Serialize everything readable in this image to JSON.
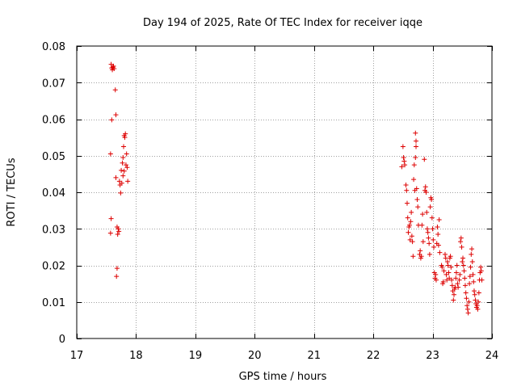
{
  "chart_data": {
    "type": "scatter",
    "title": "Day 194 of 2025, Rate Of TEC Index for receiver iqqe",
    "xlabel": "GPS time / hours",
    "ylabel": "ROTI / TECUs",
    "xlim": [
      17,
      24
    ],
    "ylim": [
      0,
      0.08
    ],
    "xticks": [
      17,
      18,
      19,
      20,
      21,
      22,
      23,
      24
    ],
    "yticks": [
      0,
      0.01,
      0.02,
      0.03,
      0.04,
      0.05,
      0.06,
      0.07,
      0.08
    ],
    "ytick_labels": [
      "0",
      "0.01",
      "0.02",
      "0.03",
      "0.04",
      "0.05",
      "0.06",
      "0.07",
      "0.08"
    ],
    "grid": true,
    "marker": "+",
    "color": "#dd0000",
    "series": [
      {
        "name": "ROTI",
        "points": [
          [
            17.58,
            0.075
          ],
          [
            17.59,
            0.074
          ],
          [
            17.6,
            0.0735
          ],
          [
            17.62,
            0.0745
          ],
          [
            17.63,
            0.0738
          ],
          [
            17.61,
            0.0742
          ],
          [
            17.65,
            0.068
          ],
          [
            17.66,
            0.0612
          ],
          [
            17.59,
            0.0598
          ],
          [
            17.57,
            0.0505
          ],
          [
            17.58,
            0.0328
          ],
          [
            17.57,
            0.0288
          ],
          [
            17.66,
            0.044
          ],
          [
            17.68,
            0.0305
          ],
          [
            17.69,
            0.0285
          ],
          [
            17.7,
            0.03
          ],
          [
            17.71,
            0.0293
          ],
          [
            17.68,
            0.0192
          ],
          [
            17.67,
            0.017
          ],
          [
            17.72,
            0.043
          ],
          [
            17.73,
            0.042
          ],
          [
            17.74,
            0.0398
          ],
          [
            17.76,
            0.0425
          ],
          [
            17.75,
            0.046
          ],
          [
            17.77,
            0.048
          ],
          [
            17.78,
            0.0495
          ],
          [
            17.79,
            0.0525
          ],
          [
            17.8,
            0.0555
          ],
          [
            17.82,
            0.056
          ],
          [
            17.81,
            0.055
          ],
          [
            17.8,
            0.0458
          ],
          [
            17.83,
            0.0475
          ],
          [
            17.84,
            0.0505
          ],
          [
            17.85,
            0.0468
          ],
          [
            17.86,
            0.043
          ],
          [
            17.78,
            0.0445
          ],
          [
            22.48,
            0.047
          ],
          [
            22.5,
            0.0525
          ],
          [
            22.51,
            0.0495
          ],
          [
            22.52,
            0.0485
          ],
          [
            22.53,
            0.0475
          ],
          [
            22.55,
            0.042
          ],
          [
            22.56,
            0.0405
          ],
          [
            22.57,
            0.037
          ],
          [
            22.58,
            0.033
          ],
          [
            22.59,
            0.029
          ],
          [
            22.6,
            0.0305
          ],
          [
            22.61,
            0.031
          ],
          [
            22.62,
            0.027
          ],
          [
            22.63,
            0.032
          ],
          [
            22.64,
            0.0345
          ],
          [
            22.65,
            0.028
          ],
          [
            22.66,
            0.0265
          ],
          [
            22.67,
            0.0225
          ],
          [
            22.68,
            0.0435
          ],
          [
            22.69,
            0.0475
          ],
          [
            22.7,
            0.0405
          ],
          [
            22.71,
            0.0495
          ],
          [
            22.72,
            0.0525
          ],
          [
            22.71,
            0.0562
          ],
          [
            22.72,
            0.054
          ],
          [
            22.73,
            0.041
          ],
          [
            22.74,
            0.038
          ],
          [
            22.75,
            0.036
          ],
          [
            22.76,
            0.031
          ],
          [
            22.78,
            0.023
          ],
          [
            22.79,
            0.024
          ],
          [
            22.8,
            0.022
          ],
          [
            22.81,
            0.0225
          ],
          [
            22.82,
            0.031
          ],
          [
            22.83,
            0.034
          ],
          [
            22.84,
            0.0265
          ],
          [
            22.86,
            0.049
          ],
          [
            22.87,
            0.0405
          ],
          [
            22.88,
            0.0415
          ],
          [
            22.89,
            0.04
          ],
          [
            22.9,
            0.0345
          ],
          [
            22.91,
            0.03
          ],
          [
            22.92,
            0.029
          ],
          [
            22.93,
            0.0275
          ],
          [
            22.94,
            0.026
          ],
          [
            22.95,
            0.023
          ],
          [
            22.96,
            0.036
          ],
          [
            22.97,
            0.0385
          ],
          [
            22.98,
            0.038
          ],
          [
            22.99,
            0.033
          ],
          [
            23.0,
            0.03
          ],
          [
            23.01,
            0.027
          ],
          [
            23.02,
            0.025
          ],
          [
            23.03,
            0.018
          ],
          [
            23.04,
            0.0165
          ],
          [
            23.05,
            0.0175
          ],
          [
            23.06,
            0.016
          ],
          [
            23.07,
            0.026
          ],
          [
            23.08,
            0.0305
          ],
          [
            23.09,
            0.0285
          ],
          [
            23.1,
            0.0255
          ],
          [
            23.11,
            0.0325
          ],
          [
            23.12,
            0.0235
          ],
          [
            23.15,
            0.02
          ],
          [
            23.16,
            0.0195
          ],
          [
            23.17,
            0.015
          ],
          [
            23.18,
            0.0155
          ],
          [
            23.19,
            0.0185
          ],
          [
            23.21,
            0.023
          ],
          [
            23.22,
            0.022
          ],
          [
            23.23,
            0.0175
          ],
          [
            23.24,
            0.016
          ],
          [
            23.25,
            0.021
          ],
          [
            23.26,
            0.02
          ],
          [
            23.27,
            0.018
          ],
          [
            23.28,
            0.0165
          ],
          [
            23.29,
            0.022
          ],
          [
            23.3,
            0.0225
          ],
          [
            23.31,
            0.0195
          ],
          [
            23.32,
            0.016
          ],
          [
            23.33,
            0.0145
          ],
          [
            23.34,
            0.013
          ],
          [
            23.35,
            0.0105
          ],
          [
            23.36,
            0.012
          ],
          [
            23.37,
            0.0135
          ],
          [
            23.38,
            0.014
          ],
          [
            23.39,
            0.0165
          ],
          [
            23.4,
            0.018
          ],
          [
            23.41,
            0.02
          ],
          [
            23.42,
            0.015
          ],
          [
            23.43,
            0.014
          ],
          [
            23.45,
            0.016
          ],
          [
            23.46,
            0.0175
          ],
          [
            23.47,
            0.0265
          ],
          [
            23.48,
            0.0275
          ],
          [
            23.49,
            0.025
          ],
          [
            23.5,
            0.021
          ],
          [
            23.51,
            0.022
          ],
          [
            23.52,
            0.02
          ],
          [
            23.53,
            0.0185
          ],
          [
            23.54,
            0.0165
          ],
          [
            23.55,
            0.0145
          ],
          [
            23.56,
            0.0125
          ],
          [
            23.57,
            0.011
          ],
          [
            23.58,
            0.009
          ],
          [
            23.59,
            0.008
          ],
          [
            23.6,
            0.007
          ],
          [
            23.61,
            0.01
          ],
          [
            23.62,
            0.015
          ],
          [
            23.63,
            0.017
          ],
          [
            23.64,
            0.0195
          ],
          [
            23.65,
            0.023
          ],
          [
            23.66,
            0.0245
          ],
          [
            23.67,
            0.021
          ],
          [
            23.68,
            0.0175
          ],
          [
            23.69,
            0.0155
          ],
          [
            23.7,
            0.013
          ],
          [
            23.71,
            0.012
          ],
          [
            23.72,
            0.0105
          ],
          [
            23.73,
            0.0095
          ],
          [
            23.74,
            0.0085
          ],
          [
            23.75,
            0.009
          ],
          [
            23.76,
            0.008
          ],
          [
            23.77,
            0.01
          ],
          [
            23.78,
            0.0125
          ],
          [
            23.79,
            0.016
          ],
          [
            23.8,
            0.018
          ],
          [
            23.81,
            0.0195
          ],
          [
            23.82,
            0.0185
          ],
          [
            23.83,
            0.016
          ]
        ]
      }
    ]
  }
}
